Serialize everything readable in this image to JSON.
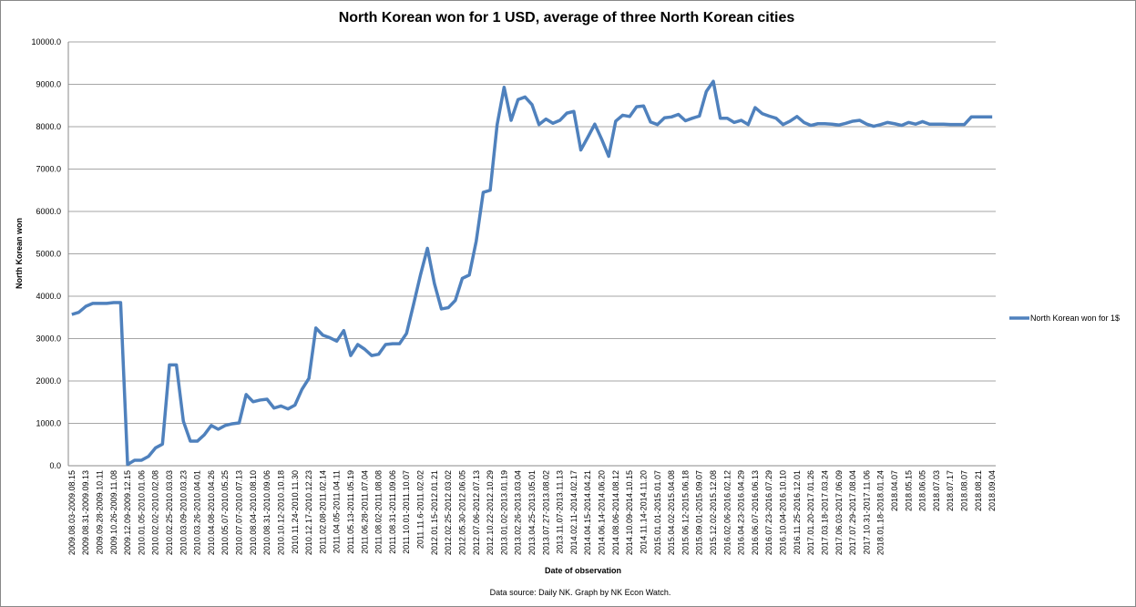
{
  "chart_data": {
    "type": "line",
    "title": "North Korean won for 1 USD, average of three North Korean cities",
    "x_label": "Date of observation",
    "y_label": "North Korean won",
    "source": "Data source:  Daily NK. Graph  by NK Econ Watch.",
    "categories": [
      "2009.08.03-2009.08.15",
      null,
      "2009.08.31-2009.09.13",
      null,
      "2009.09.28-2009.10.11",
      null,
      "2009.10.26-2009.11.08",
      null,
      "2009.12.09-2009.12.15",
      null,
      "2010.01.05-2010.01.06",
      null,
      "2010.02.02-2010.02.08",
      null,
      "2010.02.25-2010.03.03",
      null,
      "2010.03.09-2010.03.23",
      null,
      "2010.03.26-2010.04.01",
      null,
      "2010.04.08-2010.04.26",
      null,
      "2010.05.07-2010.05.25",
      null,
      "2010.07.07-2010.07.13",
      null,
      "2010.08.04-2010.08.10",
      null,
      "2010.08.31-2010.09.06",
      null,
      "2010.10.12-2010.10.18",
      null,
      "2010.11.24-2010.11.30",
      null,
      "2010.12.17-2010.12.23",
      null,
      "2011.02.08-2011.02.14",
      null,
      "2011.04.05-2011.04.11",
      null,
      "2011.05.13-2011.05.19",
      null,
      "2011.06.28-2011.07.04",
      null,
      "2011.08.02-2011.08.08",
      null,
      "2011.08.31-2011.09.06",
      null,
      "2011.10.01-2011.10.07",
      null,
      "2011.11.6-2011.02.02",
      null,
      "2012.01.15-2012.01.21",
      null,
      "2012.02.25-2012.03.02",
      null,
      "2012.05.30-2012.06.05",
      null,
      "2012.07.06-2012.07.13",
      null,
      "2012.10.22-2012.10.29",
      null,
      "2013.01.02-2013.01.19",
      null,
      "2013.02.26-2013.03.04",
      null,
      "2013.04.25-2013.05.01",
      null,
      "2013.07.27-2013.08.02",
      null,
      "2013.11.07-2013.11.13",
      null,
      "2014.02.11-2014.02.17",
      null,
      "2014.04.15-2014.04.21",
      null,
      "2014.06.14-2014.06.20",
      null,
      "2014.08.06-2014.08.12",
      null,
      "2014.10.09-2014.10.15",
      null,
      "2014.11.14-2014.11.20",
      null,
      "2015.01.01-2015.01.07",
      null,
      "2015.04.02-2015.04.08",
      null,
      "2015.06.12-2015.06.18",
      null,
      "2015.09.01-2015.09.07",
      null,
      "2015.12.02-2015.12.08",
      null,
      "2016.02.06-2016.02.12",
      null,
      "2016.04.23-2016.04.29",
      null,
      "2016.06.07-2016.06.13",
      null,
      "2016.07.23-2016.07.29",
      null,
      "2016.10.04-2016.10.10",
      null,
      "2016.11.25-2016.12.01",
      null,
      "2017.01.20-2017.01.26",
      null,
      "2017.03.18-2017.03.24",
      null,
      "2017.06.03-2017.06.09",
      null,
      "2017.07.29-2017.08.04",
      null,
      "2017.10.31-2017.11.06",
      null,
      "2018.01.18-2018.01.24",
      null,
      "2018.04.07",
      null,
      "2018.05.15",
      null,
      "2018.06.05",
      null,
      "2018.07.03",
      null,
      "2018.07.17",
      null,
      "2018.08.07",
      null,
      "2018.08.21",
      null,
      "2018.09.04"
    ],
    "series": [
      {
        "name": "North  Korean won for 1$",
        "color": "#4f81bd",
        "values": [
          3570,
          3620,
          3760,
          3830,
          3830,
          3830,
          3850,
          3850,
          30,
          130,
          130,
          220,
          420,
          510,
          2380,
          2380,
          1050,
          580,
          580,
          730,
          950,
          860,
          950,
          990,
          1010,
          1680,
          1510,
          1550,
          1570,
          1360,
          1410,
          1340,
          1430,
          1800,
          2060,
          3250,
          3080,
          3020,
          2940,
          3190,
          2600,
          2860,
          2750,
          2600,
          2630,
          2860,
          2880,
          2880,
          3120,
          3800,
          4500,
          5130,
          4300,
          3700,
          3730,
          3900,
          4420,
          4500,
          5300,
          6450,
          6500,
          8050,
          8930,
          8150,
          8640,
          8700,
          8520,
          8050,
          8180,
          8080,
          8150,
          8320,
          8360,
          7450,
          7750,
          8060,
          7700,
          7300,
          8130,
          8270,
          8240,
          8470,
          8490,
          8110,
          8050,
          8210,
          8230,
          8290,
          8140,
          8200,
          8250,
          8830,
          9070,
          8200,
          8200,
          8100,
          8150,
          8050,
          8450,
          8310,
          8250,
          8200,
          8050,
          8130,
          8240,
          8100,
          8030,
          8070,
          8070,
          8060,
          8040,
          8080,
          8130,
          8150,
          8060,
          8010,
          8050,
          8100,
          8070,
          8030,
          8100,
          8060,
          8120,
          8060,
          8060,
          8060,
          8050,
          8050,
          8050,
          8230,
          8230,
          8230,
          8230
        ]
      }
    ],
    "ylim": [
      0,
      10000
    ],
    "yticks": [
      {
        "value": 0,
        "label": "0.0"
      },
      {
        "value": 1000,
        "label": "1000.0"
      },
      {
        "value": 2000,
        "label": "2000.0"
      },
      {
        "value": 3000,
        "label": "3000.0"
      },
      {
        "value": 4000,
        "label": "4000.0"
      },
      {
        "value": 5000,
        "label": "5000.0"
      },
      {
        "value": 6000,
        "label": "6000.0"
      },
      {
        "value": 7000,
        "label": "7000.0"
      },
      {
        "value": 8000,
        "label": "8000.0"
      },
      {
        "value": 9000,
        "label": "9000.0"
      },
      {
        "value": 10000,
        "label": "10000.0"
      }
    ],
    "grid": true,
    "legend": "right"
  }
}
